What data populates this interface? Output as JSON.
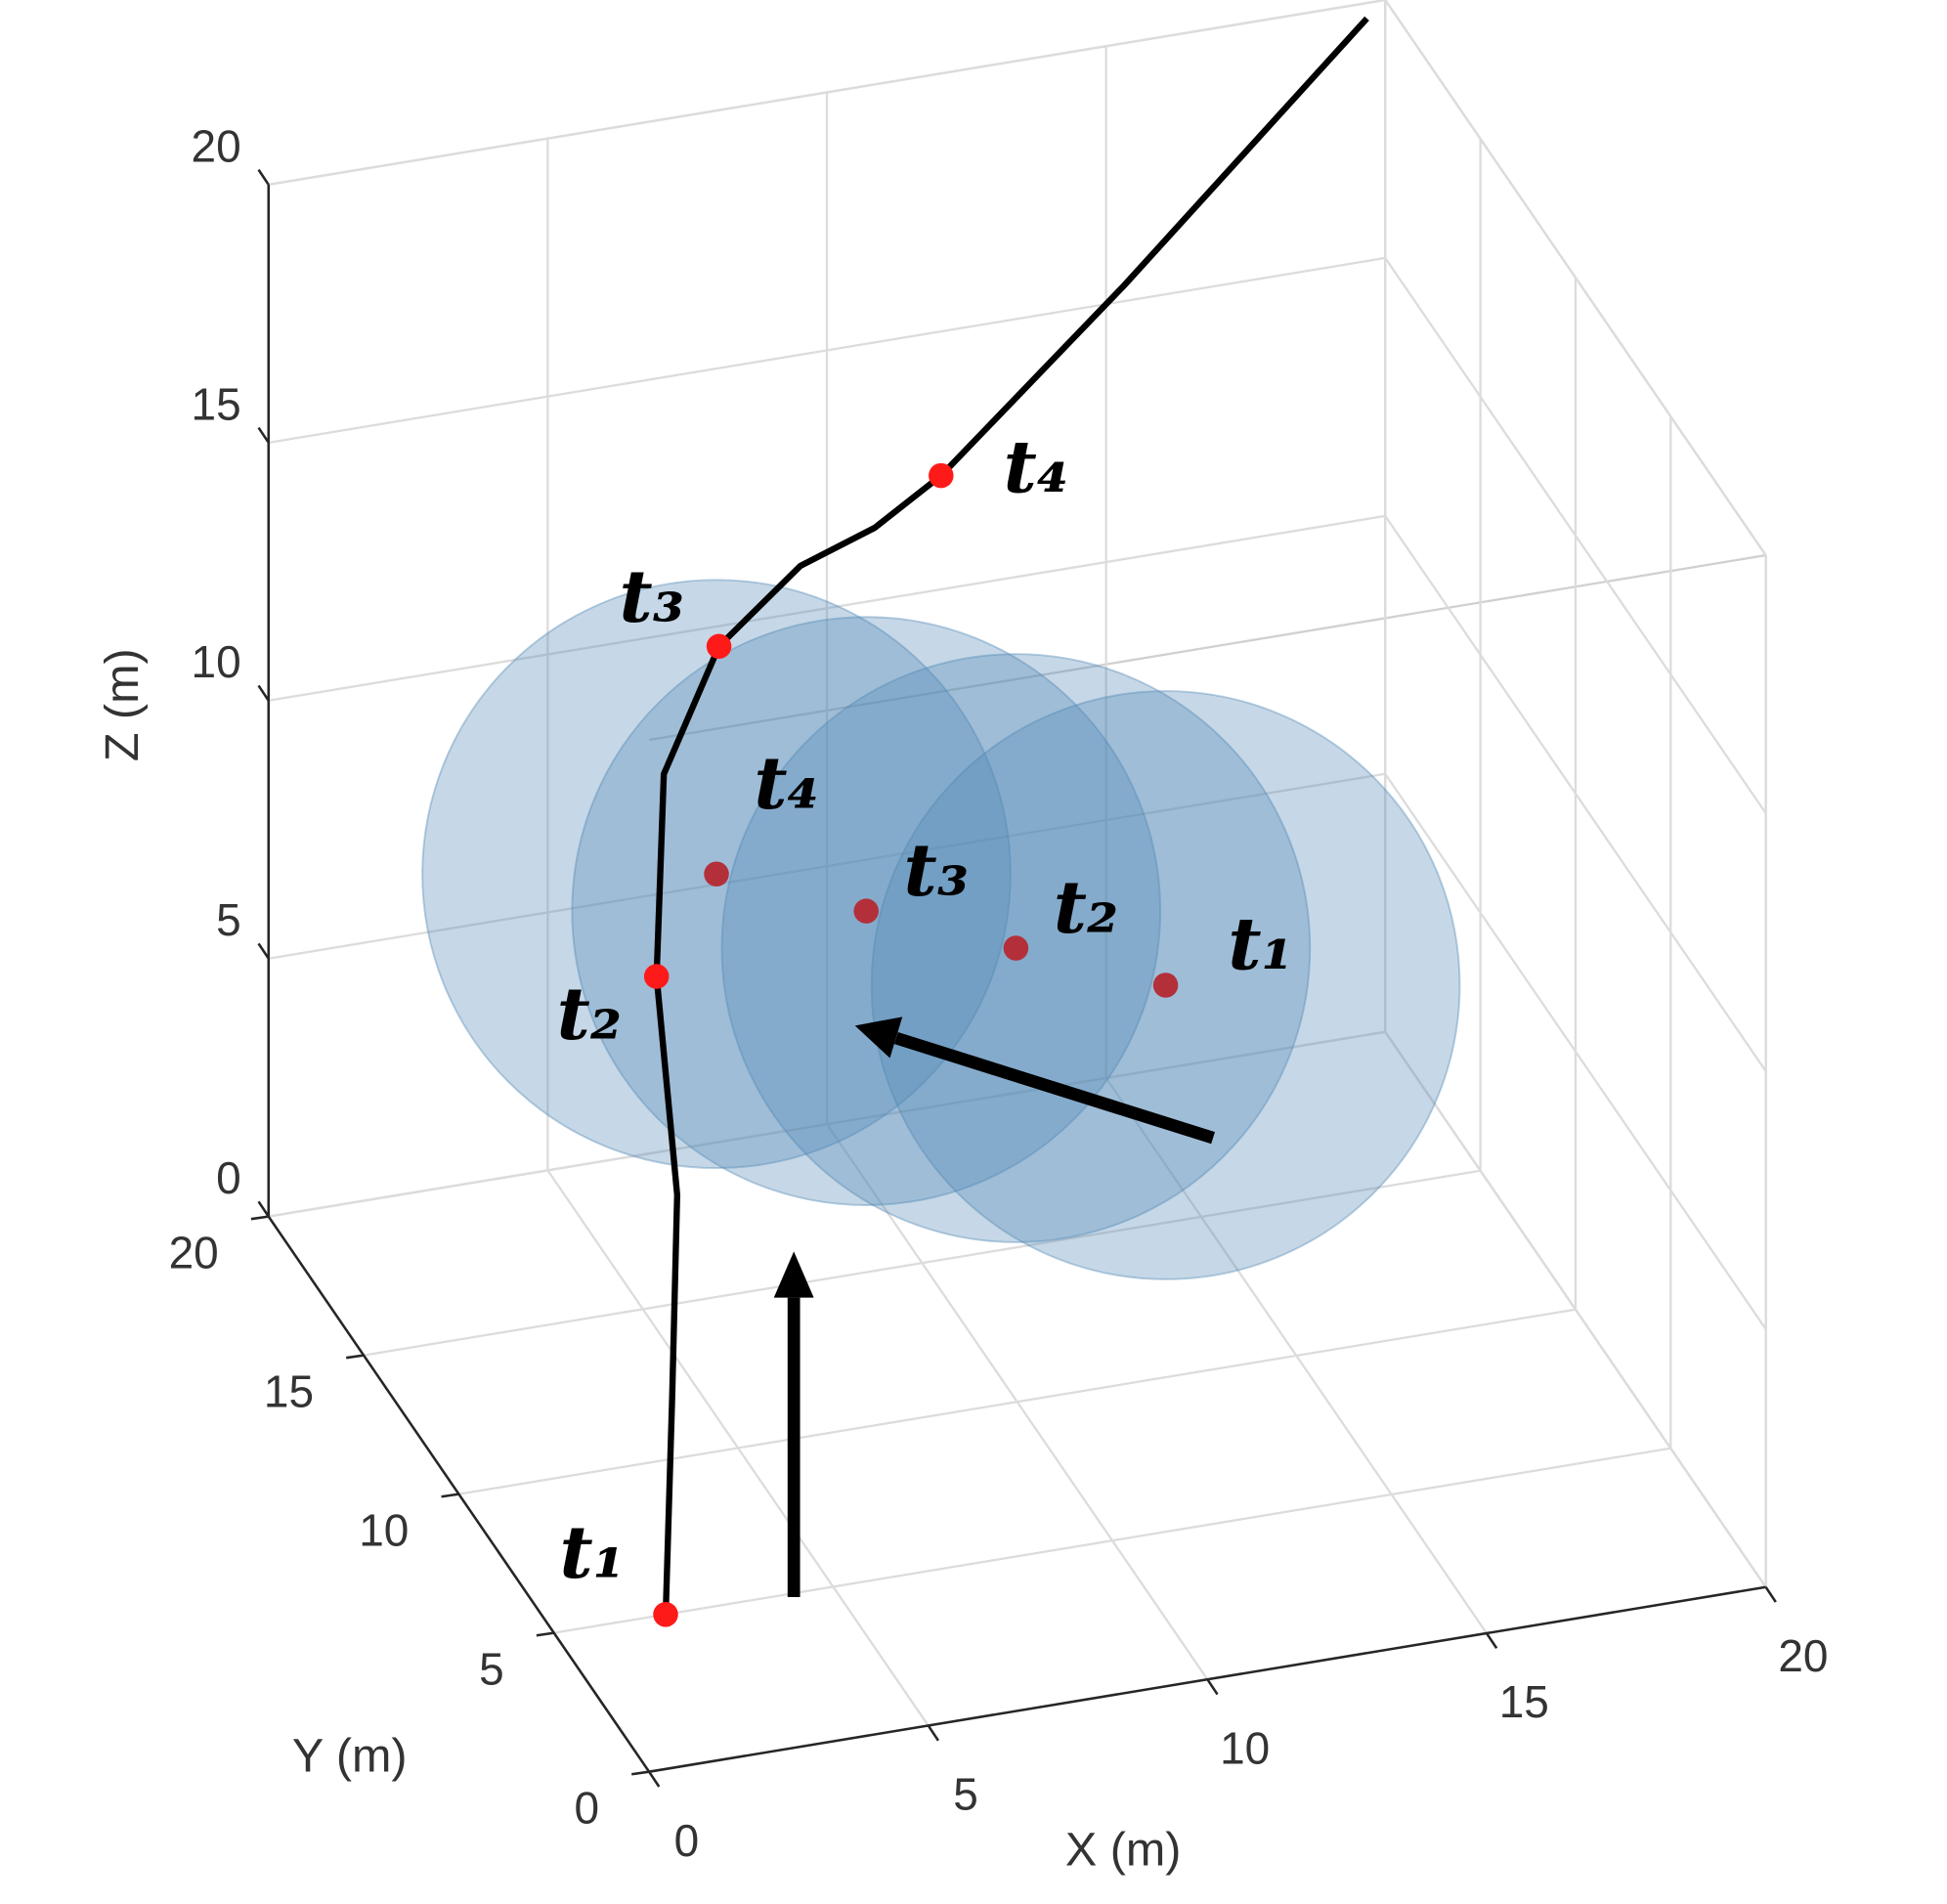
{
  "chart_data": {
    "type": "line3d",
    "xlabel": "X (m)",
    "ylabel": "Y (m)",
    "zlabel": "Z (m)",
    "xlim": [
      0,
      20
    ],
    "ylim": [
      0,
      20
    ],
    "zlim": [
      0,
      20
    ],
    "xticks": [
      0,
      5,
      10,
      15,
      20
    ],
    "yticks": [
      0,
      5,
      10,
      15,
      20
    ],
    "zticks": [
      0,
      5,
      10,
      15,
      20
    ],
    "grid": true,
    "trajectory": {
      "color": "#000000",
      "x": [
        2,
        2.8,
        3.4,
        3.2,
        3.5,
        5,
        6.8,
        8.3,
        10,
        14.3,
        19.5
      ],
      "y": [
        5,
        7,
        8.5,
        9,
        9.5,
        11,
        12,
        12.5,
        14,
        17,
        19.5
      ],
      "z": [
        0,
        3,
        6,
        10,
        13.6,
        15,
        15.7,
        15.9,
        15.8,
        17.1,
        20
      ]
    },
    "waypoints": {
      "color": "#ff1a1a",
      "labels": [
        "t₁",
        "t₂",
        "t₃",
        "t₄"
      ],
      "x": [
        2,
        3.2,
        5,
        10
      ],
      "y": [
        5,
        9,
        11,
        14
      ],
      "z": [
        0,
        10,
        15,
        15.8
      ]
    },
    "spheres": {
      "color": "#4f86b3",
      "center_color": "#b3303a",
      "labels": [
        "t₁",
        "t₂",
        "t₃",
        "t₄"
      ],
      "x": [
        13,
        11,
        9,
        7
      ],
      "y": [
        11,
        13,
        15,
        17
      ],
      "z": [
        7,
        7,
        7,
        7
      ],
      "radius": [
        5.7,
        5.7,
        5.7,
        5.7
      ]
    }
  }
}
